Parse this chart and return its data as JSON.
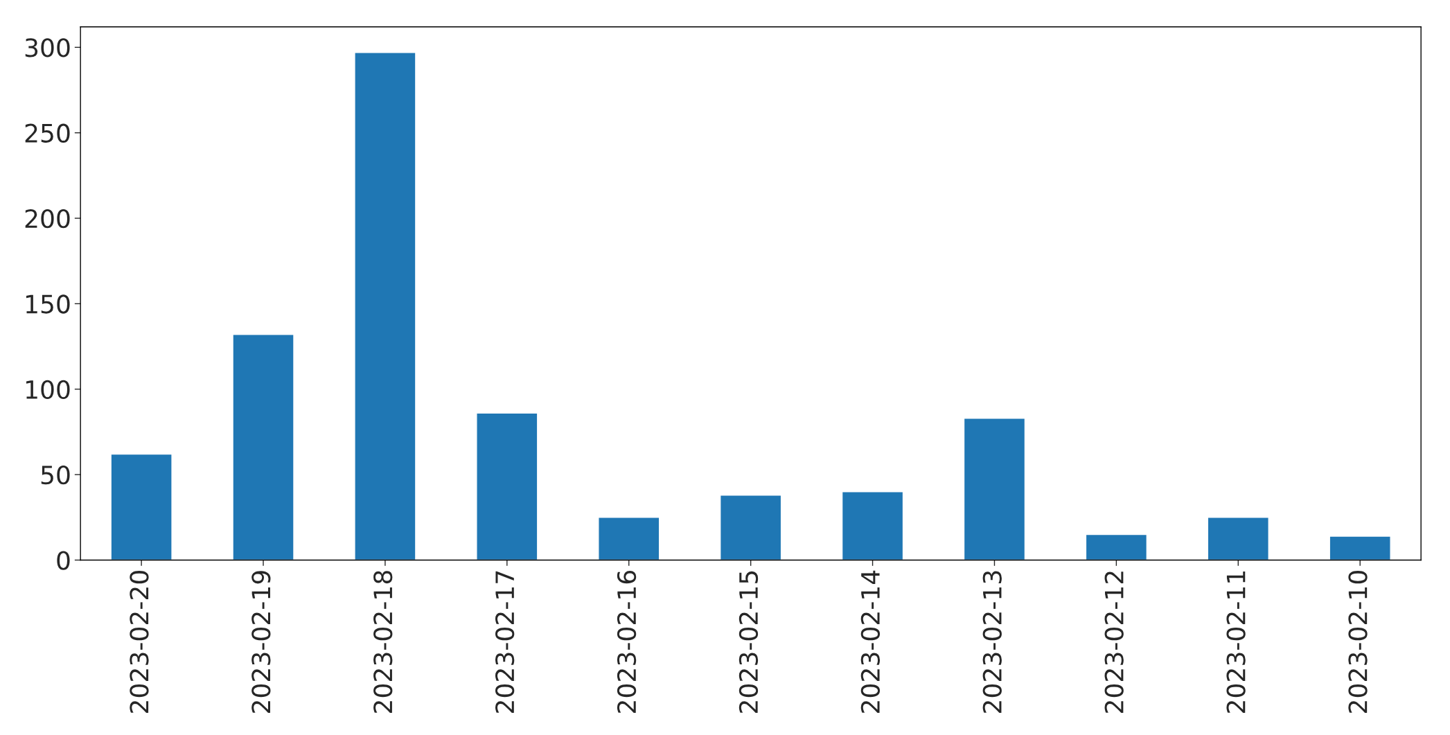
{
  "chart_data": {
    "type": "bar",
    "categories": [
      "2023-02-20",
      "2023-02-19",
      "2023-02-18",
      "2023-02-17",
      "2023-02-16",
      "2023-02-15",
      "2023-02-14",
      "2023-02-13",
      "2023-02-12",
      "2023-02-11",
      "2023-02-10"
    ],
    "values": [
      62,
      132,
      297,
      86,
      25,
      38,
      40,
      83,
      15,
      25,
      14
    ],
    "color": "#1f77b4",
    "ylim": [
      0,
      312
    ],
    "yticks": [
      0,
      50,
      100,
      150,
      200,
      250,
      300
    ],
    "grid": false
  }
}
